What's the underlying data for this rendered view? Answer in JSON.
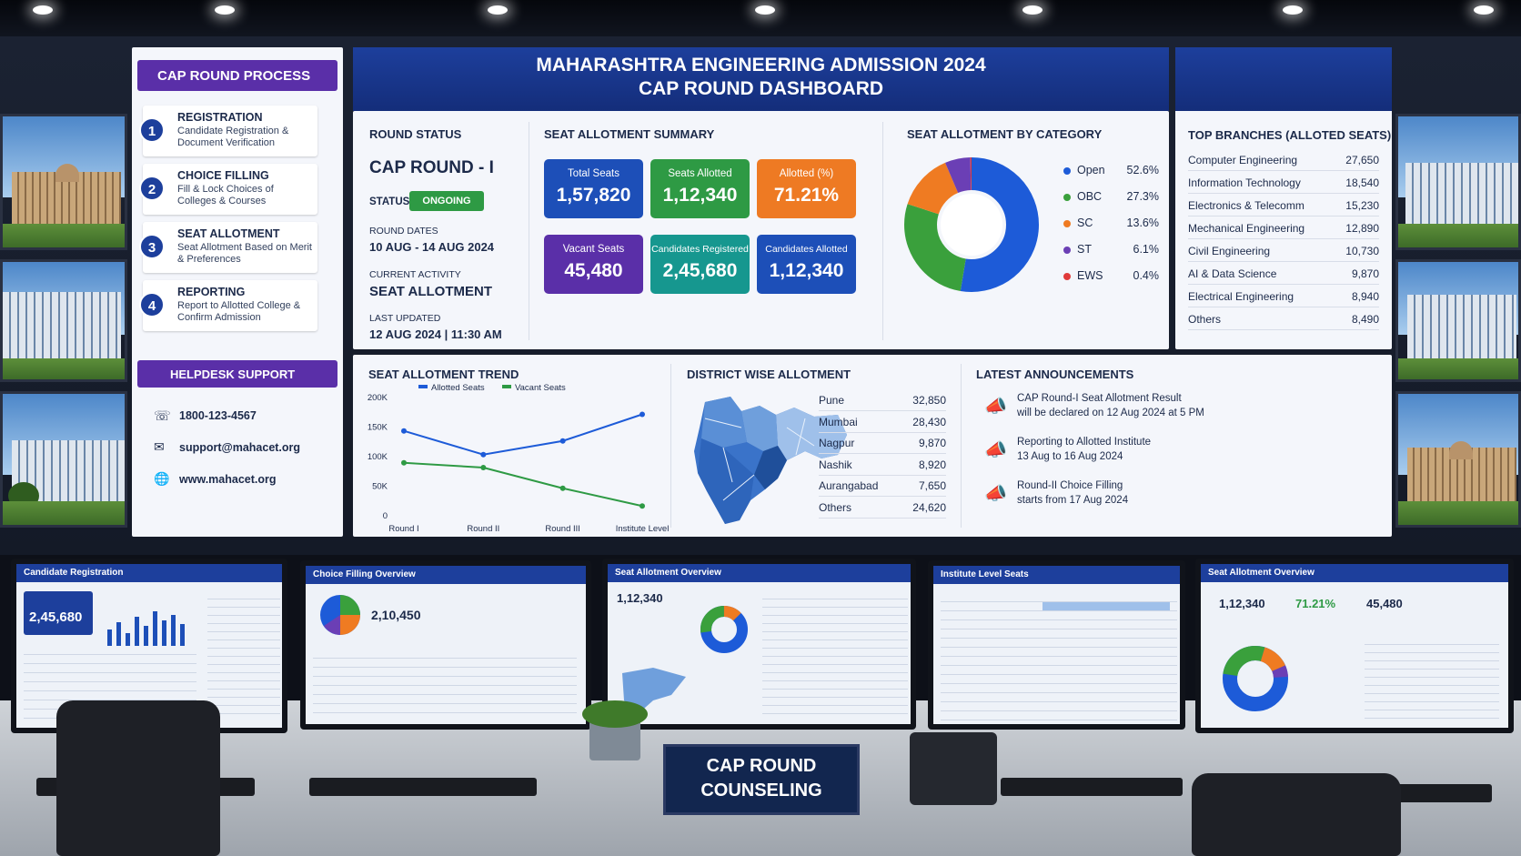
{
  "main_title": {
    "line1": "MAHARASHTRA ENGINEERING ADMISSION 2024",
    "line2": "CAP ROUND DASHBOARD"
  },
  "process": {
    "title": "CAP ROUND PROCESS",
    "steps": [
      {
        "num": "1",
        "title": "REGISTRATION",
        "desc": "Candidate Registration & Document Verification"
      },
      {
        "num": "2",
        "title": "CHOICE FILLING",
        "desc": "Fill & Lock Choices of Colleges & Courses"
      },
      {
        "num": "3",
        "title": "SEAT ALLOTMENT",
        "desc": "Seat Allotment Based on Merit & Preferences"
      },
      {
        "num": "4",
        "title": "REPORTING",
        "desc": "Report to Allotted College & Confirm Admission"
      }
    ]
  },
  "helpdesk": {
    "title": "HELPDESK SUPPORT",
    "phone": "1800-123-4567",
    "email": "support@mahacet.org",
    "website": "www.mahacet.org"
  },
  "round_status": {
    "title": "ROUND STATUS",
    "round": "CAP ROUND - I",
    "status_label": "STATUS",
    "status": "ONGOING",
    "dates_label": "ROUND DATES",
    "dates": "10 AUG - 14 AUG 2024",
    "activity_label": "CURRENT ACTIVITY",
    "activity": "SEAT ALLOTMENT",
    "updated_label": "LAST UPDATED",
    "updated": "12 AUG 2024 | 11:30 AM"
  },
  "summary": {
    "title": "SEAT ALLOTMENT SUMMARY",
    "cards": [
      {
        "label": "Total Seats",
        "value": "1,57,820",
        "color": "#1d4fb8"
      },
      {
        "label": "Seats Allotted",
        "value": "1,12,340",
        "color": "#2e9a44"
      },
      {
        "label": "Allotted (%)",
        "value": "71.21%",
        "color": "#ee7a23"
      },
      {
        "label": "Vacant Seats",
        "value": "45,480",
        "color": "#5a2fa8"
      },
      {
        "label": "Candidates Registered",
        "value": "2,45,680",
        "color": "#16978f"
      },
      {
        "label": "Candidates Allotted",
        "value": "1,12,340",
        "color": "#1d4fb8"
      }
    ]
  },
  "category": {
    "title": "SEAT ALLOTMENT BY CATEGORY",
    "items": [
      {
        "label": "Open",
        "pct": "52.6%",
        "value": 52.6,
        "color": "#1d5bd8"
      },
      {
        "label": "OBC",
        "pct": "27.3%",
        "value": 27.3,
        "color": "#3aa03c"
      },
      {
        "label": "SC",
        "pct": "13.6%",
        "value": 13.6,
        "color": "#ef7b22"
      },
      {
        "label": "ST",
        "pct": "6.1%",
        "value": 6.1,
        "color": "#6b3fb5"
      },
      {
        "label": "EWS",
        "pct": "0.4%",
        "value": 0.4,
        "color": "#e03a3a"
      }
    ]
  },
  "branches": {
    "title": "TOP BRANCHES (ALLOTED SEATS)",
    "rows": [
      {
        "name": "Computer Engineering",
        "value": "27,650"
      },
      {
        "name": "Information Technology",
        "value": "18,540"
      },
      {
        "name": "Electronics & Telecomm",
        "value": "15,230"
      },
      {
        "name": "Mechanical Engineering",
        "value": "12,890"
      },
      {
        "name": "Civil Engineering",
        "value": "10,730"
      },
      {
        "name": "AI & Data Science",
        "value": "9,870"
      },
      {
        "name": "Electrical Engineering",
        "value": "8,940"
      },
      {
        "name": "Others",
        "value": "8,490"
      }
    ]
  },
  "trend": {
    "title": "SEAT ALLOTMENT TREND"
  },
  "chart_data": {
    "type": "line",
    "title": "SEAT ALLOTMENT TREND",
    "categories": [
      "Round I",
      "Round II",
      "Round III",
      "Institute Level"
    ],
    "y_ticks": [
      "200K",
      "150K",
      "100K",
      "50K",
      "0"
    ],
    "ylim": [
      0,
      200000
    ],
    "series": [
      {
        "name": "Allotted Seats",
        "values": [
          142000,
          102000,
          125000,
          170000
        ],
        "color": "#1d5bd8"
      },
      {
        "name": "Vacant Seats",
        "values": [
          88000,
          80000,
          45000,
          15000
        ],
        "color": "#2e9a44"
      }
    ],
    "point_labels": [
      "",
      "",
      "",
      ""
    ],
    "legend": "top",
    "grid": false
  },
  "district": {
    "title": "DISTRICT WISE ALLOTMENT",
    "rows": [
      {
        "name": "Pune",
        "value": "32,850"
      },
      {
        "name": "Mumbai",
        "value": "28,430"
      },
      {
        "name": "Nagpur",
        "value": "9,870"
      },
      {
        "name": "Nashik",
        "value": "8,920"
      },
      {
        "name": "Aurangabad",
        "value": "7,650"
      },
      {
        "name": "Others",
        "value": "24,620"
      }
    ]
  },
  "announcements": {
    "title": "LATEST ANNOUNCEMENTS",
    "items": [
      {
        "line1": "CAP Round-I Seat Allotment Result",
        "line2": "will be declared on 12 Aug 2024 at 5 PM"
      },
      {
        "line1": "Reporting to Allotted Institute",
        "line2": "13 Aug to 16 Aug 2024"
      },
      {
        "line1": "Round-II Choice Filling",
        "line2": "starts from 17 Aug 2024"
      }
    ]
  },
  "monitors": {
    "m1": {
      "title": "Candidate Registration",
      "value": "2,45,680"
    },
    "m2": {
      "title": "Choice Filling Overview",
      "value": "2,10,450"
    },
    "m3": {
      "title": "Seat Allotment Overview",
      "value": "1,12,340"
    },
    "m4": {
      "title": "Institute Level Seats"
    },
    "m5": {
      "title": "Seat Allotment Overview",
      "v1": "1,12,340",
      "v2": "71.21%",
      "v3": "45,480"
    }
  },
  "desk_sign": {
    "line1": "CAP ROUND",
    "line2": "COUNSELING"
  }
}
